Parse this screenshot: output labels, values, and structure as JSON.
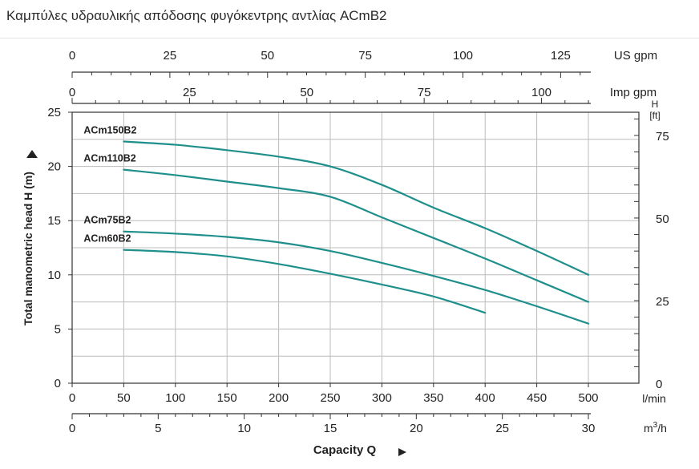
{
  "page": {
    "title": "Καμπύλες υδραυλικής απόδοσης φυγόκεντρης αντλίας ACmB2"
  },
  "chart_data": {
    "type": "line",
    "title": "",
    "xlabel": "Capacity Q",
    "ylabel": "Total manometric head H (m)",
    "grid": true,
    "primary_x": {
      "unit": "l/min",
      "range": [
        0,
        550
      ],
      "ticks": [
        0,
        50,
        100,
        150,
        200,
        250,
        300,
        350,
        400,
        450,
        500
      ]
    },
    "primary_y": {
      "unit": "m",
      "range": [
        0,
        25
      ],
      "ticks": [
        0,
        5,
        10,
        15,
        20,
        25
      ]
    },
    "secondary_axes": [
      {
        "name": "US gpm",
        "ticks": [
          0,
          25,
          50,
          75,
          100,
          125
        ],
        "l_per_min_per_unit": 3.785
      },
      {
        "name": "Imp gpm",
        "ticks": [
          0,
          25,
          50,
          75,
          100
        ],
        "l_per_min_per_unit": 4.546
      },
      {
        "name": "m³/h",
        "unit_base": "m",
        "unit_sup": "3",
        "unit_tail": "/h",
        "ticks": [
          0,
          5,
          10,
          15,
          20,
          25,
          30
        ],
        "l_per_min_per_unit": 16.6667
      },
      {
        "name": "H [ft]",
        "label_top": "H",
        "label_bottom": "[ft]",
        "ticks": [
          0,
          25,
          50,
          75
        ],
        "m_per_unit": 0.3048
      }
    ],
    "series": [
      {
        "name": "ACm150B2",
        "x": [
          50,
          100,
          150,
          200,
          250,
          300,
          350,
          400,
          450,
          500
        ],
        "y": [
          22.3,
          22.0,
          21.5,
          20.9,
          20.0,
          18.3,
          16.2,
          14.3,
          12.2,
          10.0
        ]
      },
      {
        "name": "ACm110B2",
        "x": [
          50,
          100,
          150,
          200,
          250,
          300,
          350,
          400,
          450,
          500
        ],
        "y": [
          19.7,
          19.2,
          18.6,
          18.0,
          17.2,
          15.3,
          13.4,
          11.5,
          9.5,
          7.5
        ]
      },
      {
        "name": "ACm75B2",
        "x": [
          50,
          100,
          150,
          200,
          250,
          300,
          350,
          400,
          450,
          500
        ],
        "y": [
          14.0,
          13.8,
          13.5,
          13.0,
          12.2,
          11.1,
          9.9,
          8.6,
          7.1,
          5.5
        ]
      },
      {
        "name": "ACm60B2",
        "x": [
          50,
          100,
          150,
          200,
          250,
          300,
          350,
          400
        ],
        "y": [
          12.3,
          12.1,
          11.7,
          11.0,
          10.1,
          9.1,
          8.0,
          6.5
        ]
      }
    ],
    "colors": {
      "curve": "#1f8f8c",
      "grid": "#bcbcbc",
      "axis": "#333333"
    }
  }
}
